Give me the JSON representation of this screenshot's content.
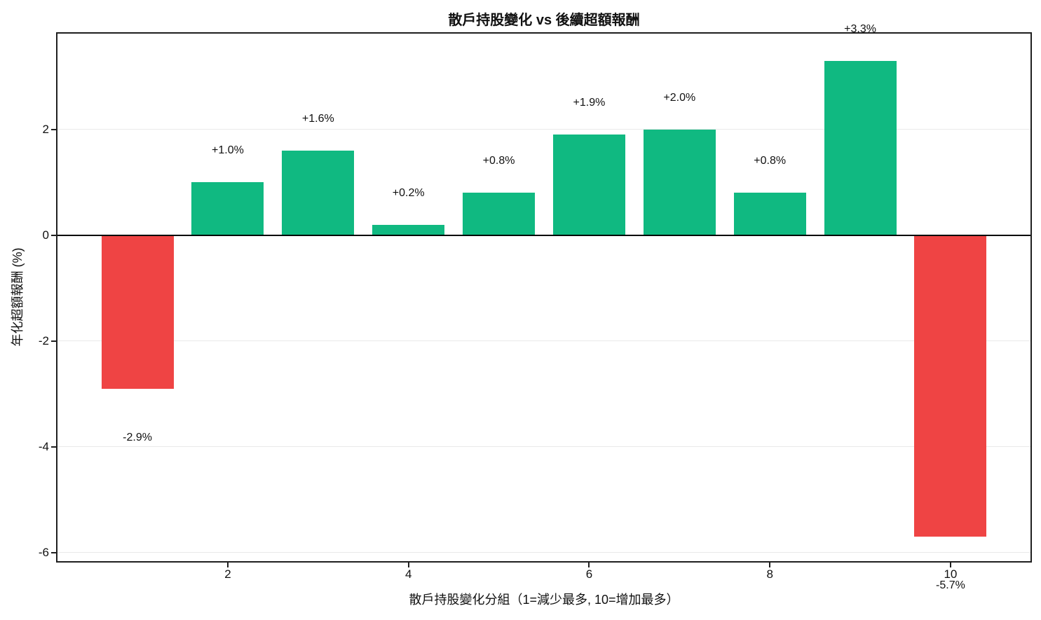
{
  "chart_data": {
    "type": "bar",
    "title": "散戶持股變化 vs 後續超額報酬",
    "xlabel": "散戶持股變化分組（1=減少最多, 10=增加最多）",
    "ylabel": "年化超額報酬 (%)",
    "categories": [
      1,
      2,
      3,
      4,
      5,
      6,
      7,
      8,
      9,
      10
    ],
    "values": [
      -2.9,
      1.0,
      1.6,
      0.2,
      0.8,
      1.9,
      2.0,
      0.8,
      3.3,
      -5.7
    ],
    "bar_labels": [
      "-2.9%",
      "+1.0%",
      "+1.6%",
      "+0.2%",
      "+0.8%",
      "+1.9%",
      "+2.0%",
      "+0.8%",
      "+3.3%",
      "-5.7%"
    ],
    "x_ticks": [
      2,
      4,
      6,
      8,
      10
    ],
    "x_tick_labels": [
      "2",
      "4",
      "6",
      "8",
      "10"
    ],
    "y_ticks": [
      2,
      0,
      -2,
      -4,
      -6
    ],
    "y_tick_labels": [
      "2",
      "0",
      "-2",
      "-4",
      "-6"
    ],
    "xlim": [
      0.115,
      10.885
    ],
    "ylim": [
      -6.16,
      3.81
    ],
    "grid": true,
    "legend": false,
    "zero_line": true,
    "colors": {
      "positive": "#10b981",
      "negative": "#ef4444",
      "grid_line": "#e9e9e9",
      "zero_line": "#000000",
      "frame": "#1f1f1f",
      "text": "#111111",
      "background": "#ffffff"
    }
  }
}
